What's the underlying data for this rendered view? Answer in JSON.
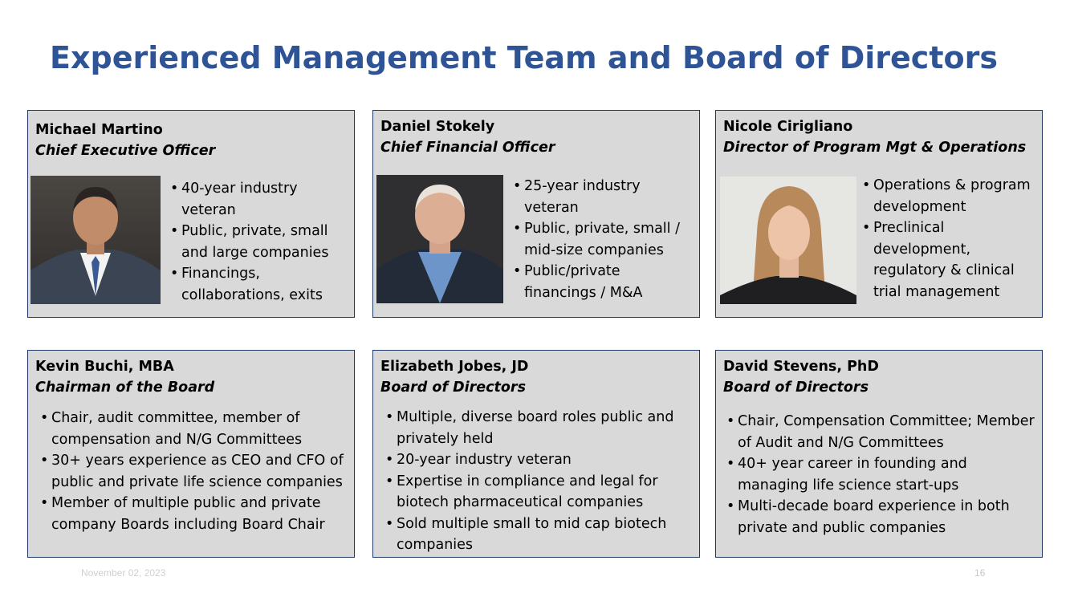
{
  "slide": {
    "title": "Experienced Management Team and Board of Directors",
    "footer_date": "November 02, 2023",
    "page_number": "16"
  },
  "team": [
    {
      "name": "Michael Martino",
      "role": "Chief Executive Officer",
      "bullets": [
        "40-year industry veteran",
        "Public, private, small and large companies",
        "Financings, collaborations, exits"
      ]
    },
    {
      "name": "Daniel Stokely",
      "role": "Chief Financial Officer",
      "bullets": [
        "25-year industry veteran",
        "Public, private, small / mid-size companies",
        "Public/private financings / M&A"
      ]
    },
    {
      "name": "Nicole Cirigliano",
      "role": "Director of Program Mgt & Operations",
      "bullets": [
        "Operations & program development",
        "Preclinical development, regulatory & clinical trial management"
      ]
    }
  ],
  "board": [
    {
      "name": "Kevin Buchi, MBA",
      "role": "Chairman of the Board",
      "bullets": [
        "Chair, audit committee, member of compensation and N/G Committees",
        "30+ years experience as CEO and CFO of public and private life science companies",
        "Member of multiple public and private company Boards including Board Chair"
      ]
    },
    {
      "name": "Elizabeth Jobes, JD",
      "role": "Board of Directors",
      "bullets": [
        "Multiple, diverse board roles public and privately held",
        "20-year industry veteran",
        "Expertise in compliance and legal for biotech pharmaceutical companies",
        "Sold multiple small to mid cap biotech companies"
      ]
    },
    {
      "name": "David Stevens, PhD",
      "role": "Board of Directors",
      "bullets": [
        "Chair, Compensation Committee; Member of Audit and N/G Committees",
        "40+ year career in founding and managing life science start-ups",
        "Multi-decade board experience in both private and public companies"
      ]
    }
  ]
}
